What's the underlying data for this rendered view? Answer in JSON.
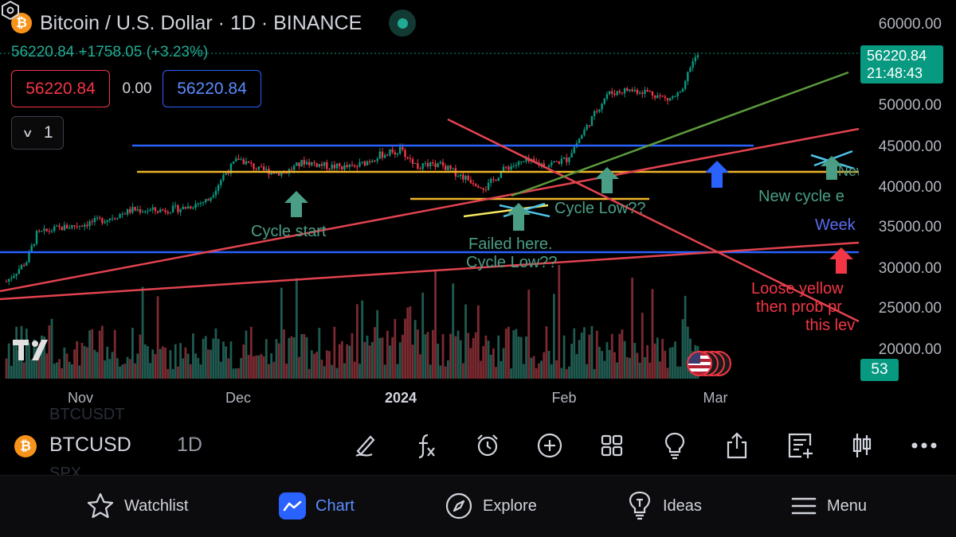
{
  "header": {
    "coin_symbol": "₿",
    "title": "Bitcoin / U.S. Dollar · 1D · BINANCE",
    "price_change_line": "56220.84 +1758.05 (+3.23%)",
    "bid": "56220.84",
    "spread": "0.00",
    "ask": "56220.84",
    "interval_count": "1"
  },
  "price_tag": {
    "price": "56220.84",
    "countdown": "21:48:43"
  },
  "volume_tag": "53",
  "y_axis": [
    "60000.00",
    "50000.00",
    "45000.00",
    "40000.00",
    "35000.00",
    "30000.00",
    "25000.00",
    "20000.00"
  ],
  "x_axis": [
    "Nov",
    "Dec",
    "2024",
    "Feb",
    "Mar"
  ],
  "annotations": {
    "cycle_start": "Cycle start",
    "failed_here": "Failed here.",
    "cycle_low_1": "Cycle Low??",
    "cycle_low_2": "Cycle Low??",
    "new_cycle": "New cycle e",
    "new_tag": "New",
    "weekly": "Week",
    "loose_yellow_1": "Loose yellow",
    "loose_yellow_2": "then prob pr",
    "loose_yellow_3": "this lev"
  },
  "colors": {
    "up": "#089981",
    "down": "#f23645",
    "accent": "#2962ff",
    "annotation_green": "#4a9e86"
  },
  "toolbar": {
    "ghost_top": "BTCUSDT",
    "ghost_bottom": "SPX",
    "symbol": "BTCUSD",
    "interval": "1D",
    "tools": [
      "pen-icon",
      "function-icon",
      "alarm-icon",
      "plus-circle-icon",
      "grid-icon",
      "lightbulb-icon",
      "share-icon",
      "add-list-icon",
      "candles-icon",
      "more-icon"
    ]
  },
  "nav": {
    "watchlist": "Watchlist",
    "chart": "Chart",
    "explore": "Explore",
    "ideas": "Ideas",
    "menu": "Menu"
  }
}
